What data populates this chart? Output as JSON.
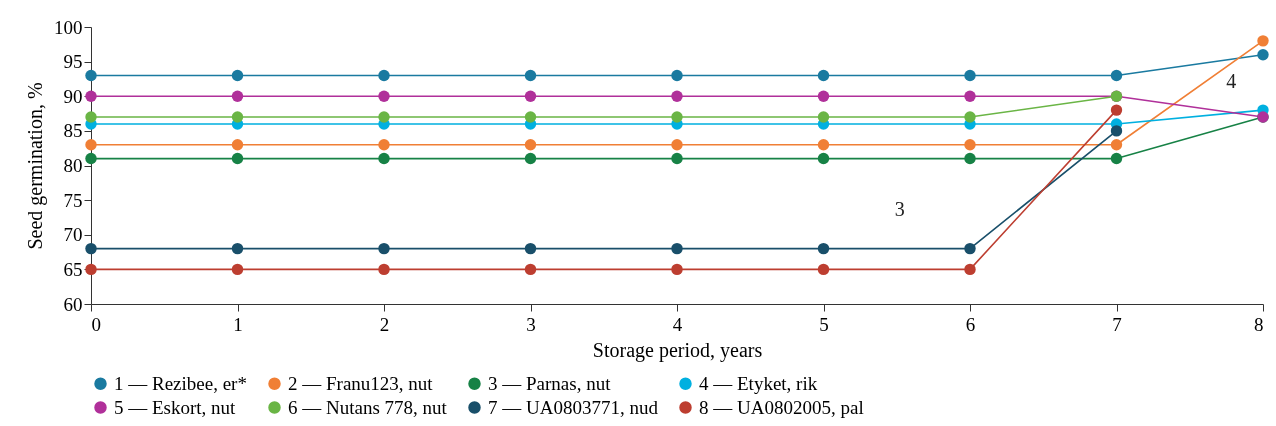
{
  "chart_data": {
    "type": "line",
    "xlabel": "Storage period, years",
    "ylabel": "Seed germination, %",
    "x": [
      0,
      1,
      2,
      3,
      4,
      5,
      6,
      7,
      8
    ],
    "xlim": [
      0,
      8
    ],
    "xticks": [
      0,
      1,
      2,
      3,
      4,
      5,
      6,
      7,
      8
    ],
    "ylim": [
      60,
      100
    ],
    "yticks": [
      60,
      65,
      70,
      75,
      80,
      85,
      90,
      95,
      100
    ],
    "grid": false,
    "legend": "bottom",
    "marker": "circle",
    "line_style": "solid",
    "series": [
      {
        "name": "1 — Rezibee, er*",
        "color": "#1a7aa0",
        "values": [
          93,
          93,
          93,
          93,
          93,
          93,
          93,
          93,
          96
        ]
      },
      {
        "name": "2 — Franu123, nut",
        "color": "#f07f35",
        "values": [
          83,
          83,
          83,
          83,
          83,
          83,
          83,
          83,
          98
        ]
      },
      {
        "name": "3 — Parnas, nut",
        "color": "#178246",
        "values": [
          81,
          81,
          81,
          81,
          81,
          81,
          81,
          81,
          87
        ]
      },
      {
        "name": "4 — Etyket, rik",
        "color": "#00b0e0",
        "values": [
          86,
          86,
          86,
          86,
          86,
          86,
          86,
          86,
          88
        ]
      },
      {
        "name": "5 — Eskort, nut",
        "color": "#b0309a",
        "values": [
          90,
          90,
          90,
          90,
          90,
          90,
          90,
          90,
          87
        ]
      },
      {
        "name": "6 — Nutans 778, nut",
        "color": "#6ab545",
        "values": [
          87,
          87,
          87,
          87,
          87,
          87,
          87,
          90,
          null
        ]
      },
      {
        "name": "7 — UA0803771, nud",
        "color": "#194f6a",
        "values": [
          68,
          68,
          68,
          68,
          68,
          68,
          68,
          85,
          null
        ]
      },
      {
        "name": "8 — UA0802005, pal",
        "color": "#bd3e30",
        "values": [
          65,
          65,
          65,
          65,
          65,
          65,
          65,
          88,
          null
        ]
      }
    ],
    "annotations": [
      "3",
      "4"
    ]
  }
}
